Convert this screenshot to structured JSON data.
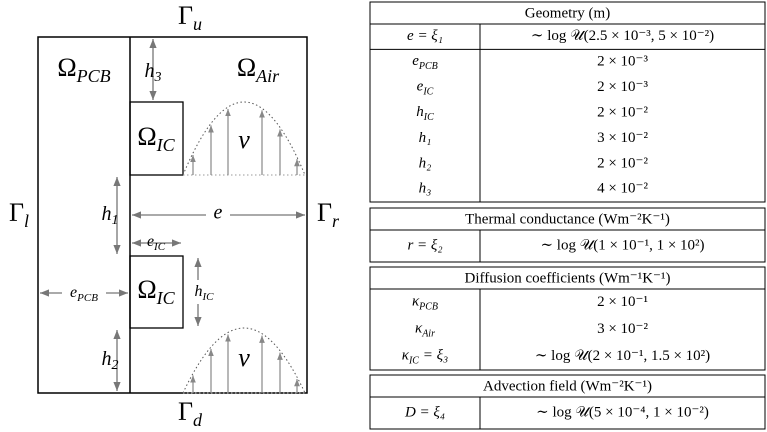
{
  "diagram": {
    "gamma_u": {
      "base": "Γ",
      "sub": "u"
    },
    "gamma_d": {
      "base": "Γ",
      "sub": "d"
    },
    "gamma_l": {
      "base": "Γ",
      "sub": "l"
    },
    "gamma_r": {
      "base": "Γ",
      "sub": "r"
    },
    "omega_pcb": {
      "base": "Ω",
      "sub": "PCB"
    },
    "omega_air": {
      "base": "Ω",
      "sub": "Air"
    },
    "omega_ic_top": {
      "base": "Ω",
      "sub": "IC"
    },
    "omega_ic_bottom": {
      "base": "Ω",
      "sub": "IC"
    },
    "h3": {
      "base": "h",
      "sub": "3"
    },
    "h1": {
      "base": "h",
      "sub": "1"
    },
    "h2": {
      "base": "h",
      "sub": "2"
    },
    "e": "e",
    "e_ic": {
      "base": "e",
      "sub": "IC"
    },
    "h_ic": {
      "base": "h",
      "sub": "IC"
    },
    "e_pcb": {
      "base": "e",
      "sub": "PCB"
    },
    "v_top": "v",
    "v_bottom": "v"
  },
  "table": {
    "sections": [
      {
        "title": "Geometry (m)",
        "rows": [
          [
            "e = ξ₁",
            "∼ log 𝒰(2.5 × 10⁻³, 5 × 10⁻²)"
          ],
          [
            {
              "base": "e",
              "sub": "PCB"
            },
            "2 × 10⁻³"
          ],
          [
            {
              "base": "e",
              "sub": "IC"
            },
            "2 × 10⁻³"
          ],
          [
            {
              "base": "h",
              "sub": "IC"
            },
            "2 × 10⁻²"
          ],
          [
            "h₁",
            "3 × 10⁻²"
          ],
          [
            "h₂",
            "2 × 10⁻²"
          ],
          [
            "h₃",
            "4 × 10⁻²"
          ]
        ]
      },
      {
        "title": "Thermal conductance (Wm⁻²K⁻¹)",
        "rows": [
          [
            "r = ξ₂",
            "∼ log 𝒰(1 × 10⁻¹, 1 × 10²)"
          ]
        ]
      },
      {
        "title": "Diffusion coefficients (Wm⁻¹K⁻¹)",
        "rows": [
          [
            {
              "base": "κ",
              "sub": "PCB"
            },
            "2 × 10⁻¹"
          ],
          [
            {
              "base": "κ",
              "sub": "Air"
            },
            "3 × 10⁻²"
          ],
          [
            {
              "base": "κ",
              "sub": "IC",
              "rest": " = ξ₃"
            },
            "∼ log 𝒰(2 × 10⁻¹, 1.5 × 10²)"
          ]
        ]
      },
      {
        "title": "Advection field (Wm⁻²K⁻¹)",
        "rows": [
          [
            "D = ξ₄",
            "∼ log 𝒰(5 × 10⁻⁴, 1 × 10⁻²)"
          ]
        ]
      }
    ]
  }
}
